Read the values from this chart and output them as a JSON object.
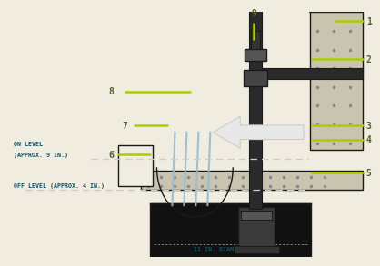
{
  "bg_color": "#f0ece0",
  "dark": "#1a1a1a",
  "green": "#aacc00",
  "teal": "#1a5060",
  "label_green": "#556030",
  "wall_fill": "#c8c4b0",
  "pit_fill": "#111111",
  "pump_fill": "#444444",
  "pipe_fill": "#2a2a2a",
  "dot_color": "#888888",
  "water_color": "#99bbcc",
  "arrow_fill": "#e8e8e8",
  "on_text_1": "ON LEVEL",
  "on_text_2": "(APPROX. 9 IN.)",
  "off_text": "OFF LEVEL (APPROX. 4 IN.)",
  "bottom_text": "11 IN. DIAMETER MIN.",
  "num_color": "#556030",
  "num_fontsize": 7,
  "annot_fontsize": 4.8
}
